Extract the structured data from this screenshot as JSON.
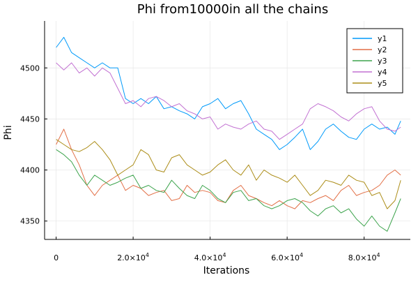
{
  "chart_data": {
    "type": "line",
    "title": "Phi from10000in all the chains",
    "xlabel": "Iterations",
    "ylabel": "Phi",
    "xlim": [
      -3000,
      92000
    ],
    "ylim": [
      4332,
      4546
    ],
    "grid": true,
    "legend_position": "top-right",
    "x_ticks": [
      0,
      20000,
      40000,
      60000,
      80000
    ],
    "x_tick_labels": [
      {
        "mantissa": "0",
        "exponent": ""
      },
      {
        "mantissa": "2.0×10",
        "exponent": "4"
      },
      {
        "mantissa": "4.0×10",
        "exponent": "4"
      },
      {
        "mantissa": "6.0×10",
        "exponent": "4"
      },
      {
        "mantissa": "8.0×10",
        "exponent": "4"
      }
    ],
    "y_ticks": [
      4350,
      4400,
      4450,
      4500
    ],
    "y_tick_labels": [
      "4350",
      "4400",
      "4450",
      "4500"
    ],
    "series": [
      {
        "name": "y1",
        "color": "#009AFA",
        "x": [
          0,
          2000,
          4000,
          6000,
          8000,
          10000,
          12000,
          14000,
          16000,
          18000,
          20000,
          22000,
          24000,
          26000,
          28000,
          30000,
          32000,
          34000,
          36000,
          38000,
          40000,
          42000,
          44000,
          46000,
          48000,
          50000,
          52000,
          54000,
          56000,
          58000,
          60000,
          62000,
          64000,
          66000,
          68000,
          70000,
          72000,
          74000,
          76000,
          78000,
          80000,
          82000,
          84000,
          86000,
          88000,
          89500
        ],
        "y": [
          4520,
          4530,
          4515,
          4510,
          4505,
          4500,
          4505,
          4500,
          4500,
          4470,
          4465,
          4470,
          4465,
          4472,
          4460,
          4462,
          4458,
          4455,
          4450,
          4462,
          4465,
          4470,
          4460,
          4465,
          4468,
          4455,
          4440,
          4435,
          4430,
          4420,
          4425,
          4432,
          4440,
          4420,
          4428,
          4440,
          4445,
          4438,
          4432,
          4430,
          4440,
          4445,
          4440,
          4442,
          4435,
          4448
        ]
      },
      {
        "name": "y2",
        "color": "#E26F46",
        "x": [
          0,
          2000,
          4000,
          6000,
          8000,
          10000,
          12000,
          14000,
          16000,
          18000,
          20000,
          22000,
          24000,
          26000,
          28000,
          30000,
          32000,
          34000,
          36000,
          38000,
          40000,
          42000,
          44000,
          46000,
          48000,
          50000,
          52000,
          54000,
          56000,
          58000,
          60000,
          62000,
          64000,
          66000,
          68000,
          70000,
          72000,
          74000,
          76000,
          78000,
          80000,
          82000,
          84000,
          86000,
          88000,
          89500
        ],
        "y": [
          4425,
          4440,
          4420,
          4405,
          4385,
          4375,
          4385,
          4390,
          4395,
          4380,
          4385,
          4382,
          4375,
          4378,
          4380,
          4370,
          4372,
          4385,
          4378,
          4380,
          4378,
          4370,
          4368,
          4380,
          4385,
          4375,
          4372,
          4368,
          4365,
          4370,
          4365,
          4362,
          4370,
          4368,
          4372,
          4375,
          4370,
          4380,
          4385,
          4375,
          4378,
          4380,
          4385,
          4395,
          4400,
          4395
        ]
      },
      {
        "name": "y3",
        "color": "#3DA44D",
        "x": [
          0,
          2000,
          4000,
          6000,
          8000,
          10000,
          12000,
          14000,
          16000,
          18000,
          20000,
          22000,
          24000,
          26000,
          28000,
          30000,
          32000,
          34000,
          36000,
          38000,
          40000,
          42000,
          44000,
          46000,
          48000,
          50000,
          52000,
          54000,
          56000,
          58000,
          60000,
          62000,
          64000,
          66000,
          68000,
          70000,
          72000,
          74000,
          76000,
          78000,
          80000,
          82000,
          84000,
          86000,
          88000,
          89500
        ],
        "y": [
          4420,
          4415,
          4408,
          4395,
          4385,
          4395,
          4390,
          4385,
          4388,
          4392,
          4395,
          4382,
          4385,
          4380,
          4378,
          4390,
          4382,
          4375,
          4372,
          4385,
          4380,
          4372,
          4368,
          4378,
          4380,
          4370,
          4372,
          4365,
          4362,
          4365,
          4370,
          4372,
          4368,
          4360,
          4355,
          4362,
          4365,
          4358,
          4362,
          4352,
          4345,
          4355,
          4345,
          4340,
          4358,
          4372
        ]
      },
      {
        "name": "y4",
        "color": "#C271D2",
        "x": [
          0,
          2000,
          4000,
          6000,
          8000,
          10000,
          12000,
          14000,
          16000,
          18000,
          20000,
          22000,
          24000,
          26000,
          28000,
          30000,
          32000,
          34000,
          36000,
          38000,
          40000,
          42000,
          44000,
          46000,
          48000,
          50000,
          52000,
          54000,
          56000,
          58000,
          60000,
          62000,
          64000,
          66000,
          68000,
          70000,
          72000,
          74000,
          76000,
          78000,
          80000,
          82000,
          84000,
          86000,
          88000,
          89500
        ],
        "y": [
          4505,
          4498,
          4505,
          4495,
          4500,
          4492,
          4500,
          4495,
          4480,
          4465,
          4468,
          4462,
          4470,
          4472,
          4468,
          4462,
          4465,
          4458,
          4455,
          4450,
          4452,
          4440,
          4445,
          4442,
          4440,
          4445,
          4448,
          4440,
          4438,
          4430,
          4435,
          4440,
          4445,
          4460,
          4465,
          4462,
          4458,
          4452,
          4448,
          4455,
          4460,
          4462,
          4448,
          4440,
          4438,
          4442
        ]
      },
      {
        "name": "y5",
        "color": "#AC8D18",
        "x": [
          0,
          2000,
          4000,
          6000,
          8000,
          10000,
          12000,
          14000,
          16000,
          18000,
          20000,
          22000,
          24000,
          26000,
          28000,
          30000,
          32000,
          34000,
          36000,
          38000,
          40000,
          42000,
          44000,
          46000,
          48000,
          50000,
          52000,
          54000,
          56000,
          58000,
          60000,
          62000,
          64000,
          66000,
          68000,
          70000,
          72000,
          74000,
          76000,
          78000,
          80000,
          82000,
          84000,
          86000,
          88000,
          89500
        ],
        "y": [
          4430,
          4425,
          4420,
          4418,
          4422,
          4428,
          4420,
          4410,
          4395,
          4400,
          4405,
          4420,
          4415,
          4400,
          4398,
          4412,
          4415,
          4405,
          4400,
          4395,
          4398,
          4405,
          4410,
          4400,
          4395,
          4405,
          4390,
          4400,
          4395,
          4392,
          4388,
          4395,
          4385,
          4375,
          4380,
          4390,
          4388,
          4385,
          4395,
          4390,
          4388,
          4375,
          4378,
          4362,
          4370,
          4390
        ]
      }
    ]
  }
}
